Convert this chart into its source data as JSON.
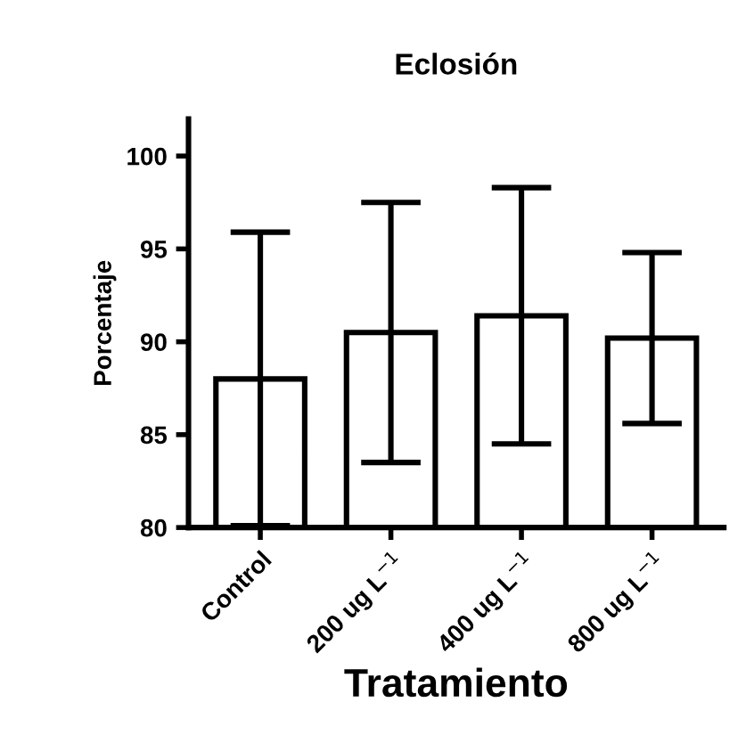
{
  "chart_data": {
    "type": "bar",
    "title": "Eclosión",
    "xlabel": "Tratamiento",
    "ylabel": "Porcentaje",
    "categories": [
      "Control",
      "200 ug L$^{−1}$",
      "400 ug L$^{−1}$",
      "800 ug L$^{−1}$"
    ],
    "values": [
      88.0,
      90.5,
      91.4,
      90.2
    ],
    "errors": [
      7.9,
      7.0,
      6.9,
      4.6
    ],
    "color": "#ffffff",
    "ylim": [
      80,
      102
    ],
    "yticks": [
      80,
      85,
      90,
      95,
      100
    ],
    "grid": false
  }
}
